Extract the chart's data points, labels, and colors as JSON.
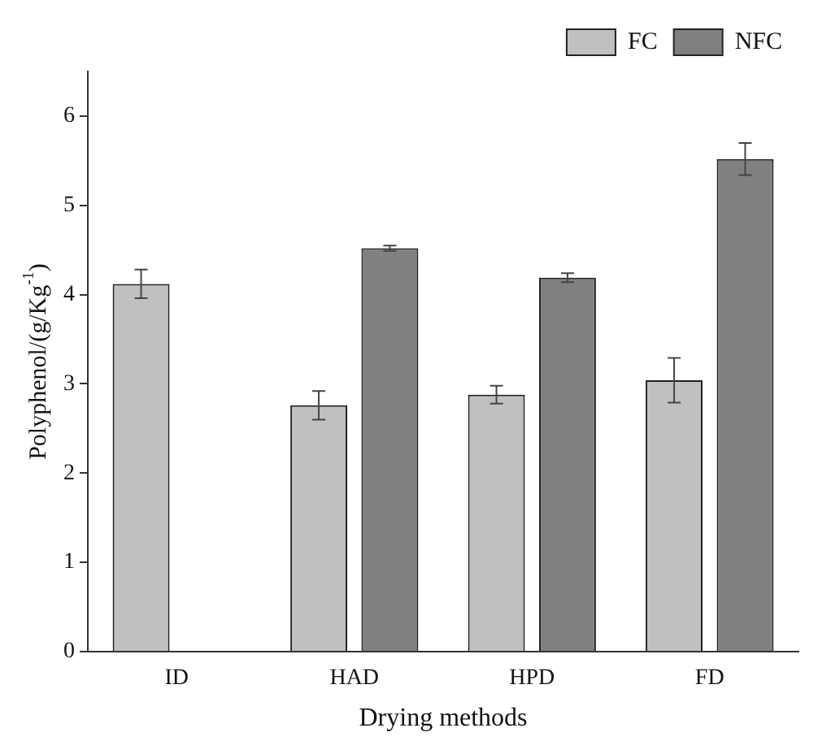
{
  "chart_data": {
    "type": "bar",
    "xlabel": "Drying methods",
    "ylabel": "Polyphenol/(g/Kg$^{-1}$)",
    "categories": [
      "ID",
      "HAD",
      "HPD",
      "FD"
    ],
    "series": [
      {
        "name": "FC",
        "color": "#c0c0c0",
        "values": [
          4.12,
          2.76,
          2.88,
          3.04
        ],
        "errors": [
          0.16,
          0.16,
          0.1,
          0.25
        ]
      },
      {
        "name": "NFC",
        "color": "#808080",
        "values": [
          null,
          4.52,
          4.19,
          5.52
        ],
        "errors": [
          null,
          0.03,
          0.05,
          0.18
        ]
      }
    ],
    "ylim": [
      0,
      6.5
    ],
    "yticks": [
      0,
      1,
      2,
      3,
      4,
      5,
      6
    ],
    "grid": false,
    "legend": "top right"
  }
}
